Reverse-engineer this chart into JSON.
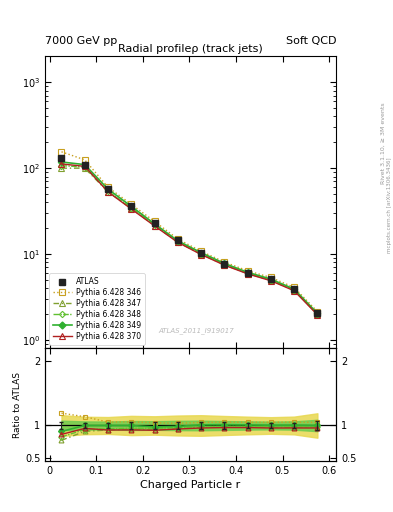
{
  "title": "Radial profileρ (track jets)",
  "top_left_label": "7000 GeV pp",
  "top_right_label": "Soft QCD",
  "xlabel": "Charged Particle r",
  "ylabel_ratio": "Ratio to ATLAS",
  "right_label_main": "Rivet 3.1.10, ≥ 3M events",
  "right_label_sub": "mcplots.cern.ch [arXiv:1306.3436]",
  "watermark": "ATLAS_2011_I919017",
  "r_values": [
    0.025,
    0.075,
    0.125,
    0.175,
    0.225,
    0.275,
    0.325,
    0.375,
    0.425,
    0.475,
    0.525,
    0.575
  ],
  "atlas_y": [
    130,
    110,
    57,
    36,
    23,
    14.5,
    10.3,
    7.7,
    6.1,
    5.1,
    3.9,
    2.05
  ],
  "atlas_yerr": [
    7,
    5,
    2.5,
    1.8,
    1.1,
    0.75,
    0.55,
    0.38,
    0.28,
    0.22,
    0.18,
    0.13
  ],
  "py346_y": [
    155,
    125,
    60,
    38,
    24,
    15.0,
    10.8,
    8.1,
    6.4,
    5.35,
    4.1,
    2.15
  ],
  "py347_y": [
    100,
    100,
    53,
    34,
    21.5,
    13.8,
    10.0,
    7.5,
    5.95,
    4.95,
    3.8,
    2.0
  ],
  "py348_y": [
    107,
    103,
    54,
    34.5,
    22,
    14.0,
    10.1,
    7.6,
    6.0,
    5.0,
    3.82,
    2.0
  ],
  "py349_y": [
    118,
    110,
    57,
    36,
    22.5,
    14.3,
    10.4,
    7.8,
    6.15,
    5.12,
    3.92,
    2.05
  ],
  "py370_y": [
    112,
    105,
    53,
    33.5,
    21.3,
    13.7,
    9.9,
    7.45,
    5.9,
    4.9,
    3.75,
    1.97
  ],
  "atlas_color": "#222222",
  "py346_color": "#c8a020",
  "py347_color": "#80a030",
  "py348_color": "#60c030",
  "py349_color": "#30b030",
  "py370_color": "#b02020",
  "band_yellow_color": "#e8d850",
  "band_green_color": "#70cc50",
  "ylim_main": [
    0.8,
    2000
  ],
  "ylim_ratio": [
    0.45,
    2.2
  ],
  "ratio_yticks": [
    0.5,
    1.0,
    2.0
  ],
  "ratio_yticklabels": [
    "0.5",
    "1",
    "2"
  ],
  "figsize": [
    3.93,
    5.12
  ],
  "dpi": 100
}
